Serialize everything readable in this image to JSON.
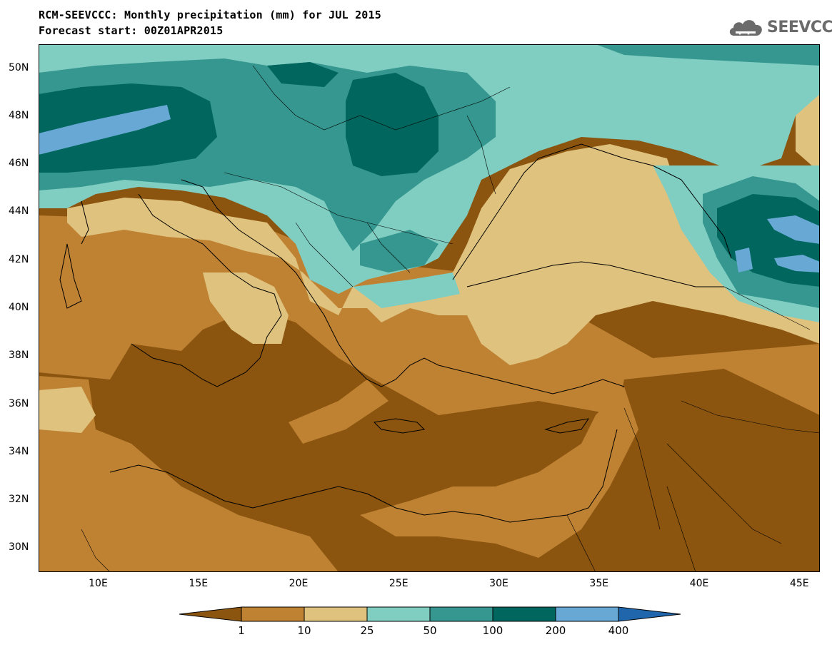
{
  "header": {
    "title_line1": "RCM-SEEVCCC: Monthly precipitation (mm) for JUL 2015",
    "title_line2": "Forecast start: 00Z01APR2015"
  },
  "logo": {
    "text": "SEEVCCC",
    "icon": "cloud-icon",
    "color": "#6b6b6b"
  },
  "map": {
    "lon_range": [
      7,
      46
    ],
    "lat_range": [
      29,
      51
    ],
    "lat_ticks": [
      "50N",
      "48N",
      "46N",
      "44N",
      "42N",
      "40N",
      "38N",
      "36N",
      "34N",
      "32N",
      "30N"
    ],
    "lon_ticks": [
      "10E",
      "15E",
      "20E",
      "25E",
      "30E",
      "35E",
      "40E",
      "45E"
    ]
  },
  "legend": {
    "colors": [
      "#8b5510",
      "#bf8233",
      "#dfc27e",
      "#80cdc1",
      "#35978f",
      "#01665e",
      "#67a9d4",
      "#2066ac"
    ],
    "labels": [
      "1",
      "10",
      "25",
      "50",
      "100",
      "200",
      "400"
    ]
  }
}
